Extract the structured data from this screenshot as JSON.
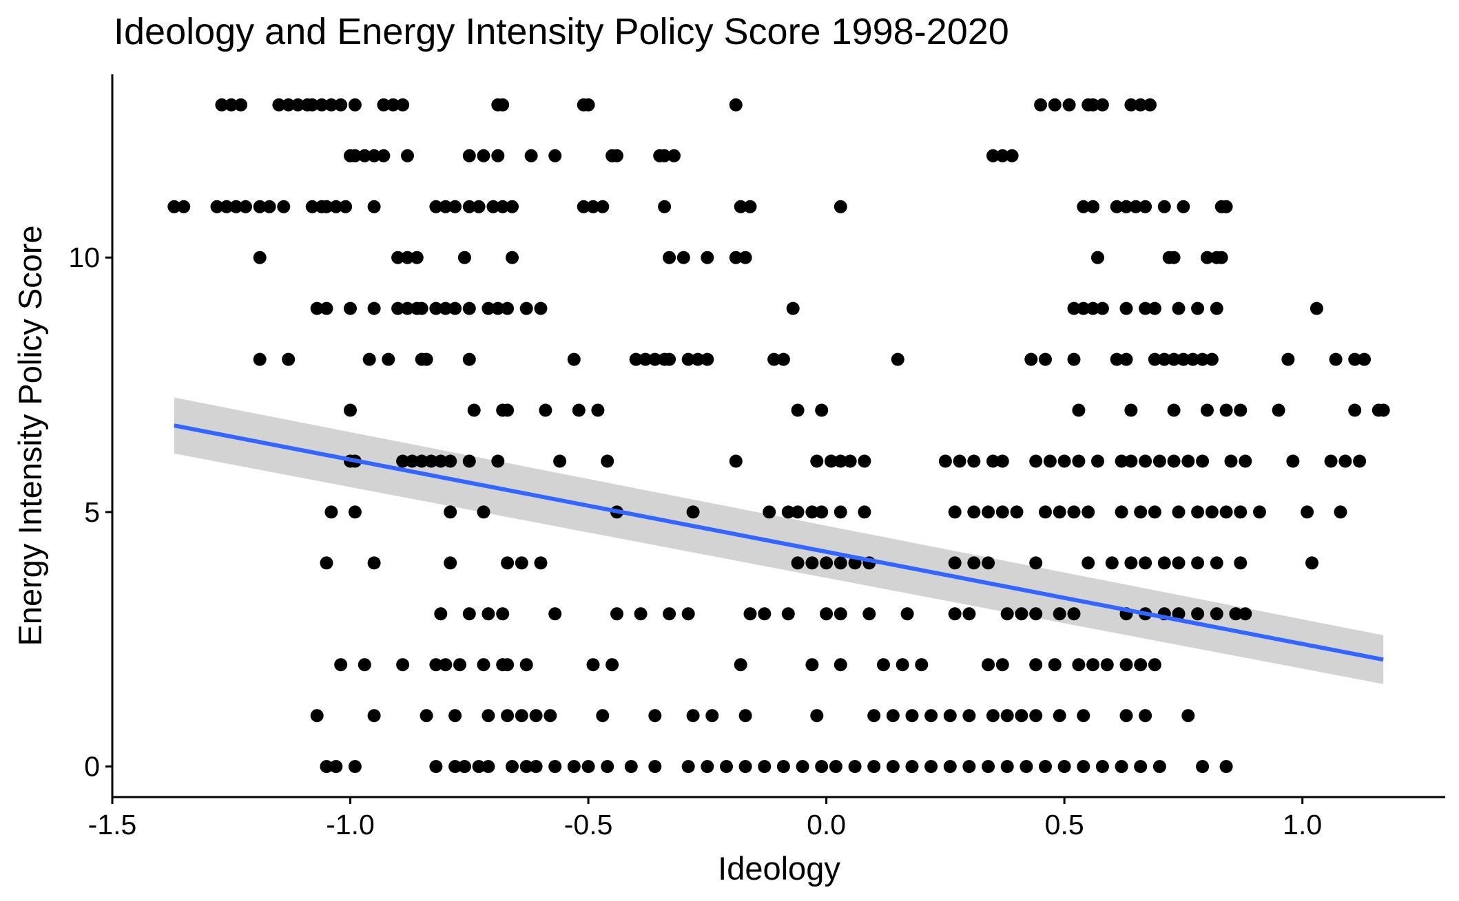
{
  "chart_data": {
    "type": "scatter",
    "title": "Ideology and Energy Intensity Policy Score 1998-2020",
    "xlabel": "Ideology",
    "ylabel": "Energy Intensity Policy Score",
    "xlim": [
      -1.5,
      1.3
    ],
    "ylim": [
      -0.6,
      13.6
    ],
    "grid": false,
    "x_ticks": [
      -1.5,
      -1.0,
      -0.5,
      0.0,
      0.5,
      1.0
    ],
    "x_tick_labels": [
      "-1.5",
      "-1.0",
      "-0.5",
      "0.0",
      "0.5",
      "1.0"
    ],
    "y_ticks": [
      0,
      5,
      10
    ],
    "y_tick_labels": [
      "0",
      "5",
      "10"
    ],
    "point_color": "#000000",
    "points_by_score": [
      {
        "y": 13,
        "x": [
          -1.27,
          -1.25,
          -1.23,
          -1.15,
          -1.13,
          -1.11,
          -1.09,
          -1.08,
          -1.06,
          -1.04,
          -1.02,
          -0.99,
          -0.93,
          -0.91,
          -0.89,
          -0.69,
          -0.68,
          -0.51,
          -0.5,
          -0.19,
          0.45,
          0.48,
          0.51,
          0.55,
          0.56,
          0.58,
          0.64,
          0.66,
          0.68
        ]
      },
      {
        "y": 12,
        "x": [
          -1.0,
          -0.99,
          -0.97,
          -0.95,
          -0.93,
          -0.88,
          -0.75,
          -0.72,
          -0.69,
          -0.62,
          -0.57,
          -0.45,
          -0.44,
          -0.35,
          -0.34,
          -0.32,
          0.35,
          0.37,
          0.39
        ]
      },
      {
        "y": 11,
        "x": [
          -1.37,
          -1.35,
          -1.28,
          -1.26,
          -1.24,
          -1.22,
          -1.19,
          -1.17,
          -1.14,
          -1.08,
          -1.06,
          -1.05,
          -1.03,
          -1.01,
          -0.95,
          -0.82,
          -0.8,
          -0.78,
          -0.75,
          -0.73,
          -0.7,
          -0.68,
          -0.66,
          -0.51,
          -0.49,
          -0.47,
          -0.34,
          -0.18,
          -0.16,
          0.03,
          0.54,
          0.56,
          0.61,
          0.63,
          0.65,
          0.67,
          0.71,
          0.75,
          0.83,
          0.84
        ]
      },
      {
        "y": 10,
        "x": [
          -1.19,
          -0.9,
          -0.88,
          -0.86,
          -0.76,
          -0.66,
          -0.33,
          -0.3,
          -0.25,
          -0.19,
          -0.17,
          0.57,
          0.72,
          0.73,
          0.8,
          0.82,
          0.83
        ]
      },
      {
        "y": 9,
        "x": [
          -1.07,
          -1.05,
          -1.0,
          -0.95,
          -0.9,
          -0.88,
          -0.86,
          -0.85,
          -0.82,
          -0.8,
          -0.78,
          -0.75,
          -0.71,
          -0.69,
          -0.67,
          -0.63,
          -0.6,
          -0.07,
          0.52,
          0.54,
          0.56,
          0.58,
          0.63,
          0.67,
          0.69,
          0.74,
          0.78,
          0.82,
          1.03
        ]
      },
      {
        "y": 8,
        "x": [
          -1.19,
          -1.13,
          -0.96,
          -0.92,
          -0.85,
          -0.84,
          -0.75,
          -0.53,
          -0.4,
          -0.38,
          -0.36,
          -0.34,
          -0.33,
          -0.29,
          -0.27,
          -0.25,
          -0.11,
          -0.09,
          0.15,
          0.43,
          0.46,
          0.52,
          0.61,
          0.63,
          0.69,
          0.71,
          0.73,
          0.75,
          0.77,
          0.79,
          0.81,
          0.97,
          1.07,
          1.11,
          1.13
        ]
      },
      {
        "y": 7,
        "x": [
          -1.0,
          -0.74,
          -0.68,
          -0.67,
          -0.59,
          -0.52,
          -0.48,
          -0.06,
          -0.01,
          0.53,
          0.64,
          0.73,
          0.8,
          0.84,
          0.87,
          0.95,
          1.11,
          1.16,
          1.17
        ]
      },
      {
        "y": 6,
        "x": [
          -1.0,
          -0.99,
          -0.89,
          -0.87,
          -0.85,
          -0.83,
          -0.81,
          -0.79,
          -0.75,
          -0.69,
          -0.56,
          -0.46,
          -0.19,
          -0.02,
          0.01,
          0.03,
          0.05,
          0.08,
          0.25,
          0.28,
          0.31,
          0.35,
          0.37,
          0.44,
          0.47,
          0.5,
          0.53,
          0.57,
          0.62,
          0.64,
          0.67,
          0.7,
          0.73,
          0.76,
          0.79,
          0.85,
          0.88,
          0.98,
          1.06,
          1.09,
          1.12
        ]
      },
      {
        "y": 5,
        "x": [
          -1.04,
          -0.99,
          -0.79,
          -0.72,
          -0.44,
          -0.28,
          -0.12,
          -0.08,
          -0.06,
          -0.03,
          -0.01,
          0.03,
          0.08,
          0.27,
          0.31,
          0.34,
          0.37,
          0.4,
          0.46,
          0.49,
          0.52,
          0.55,
          0.62,
          0.66,
          0.69,
          0.74,
          0.78,
          0.81,
          0.84,
          0.87,
          0.91,
          1.01,
          1.08
        ]
      },
      {
        "y": 4,
        "x": [
          -1.05,
          -0.95,
          -0.79,
          -0.67,
          -0.64,
          -0.6,
          -0.06,
          -0.03,
          0.0,
          0.03,
          0.06,
          0.09,
          0.27,
          0.31,
          0.34,
          0.44,
          0.55,
          0.6,
          0.64,
          0.67,
          0.71,
          0.74,
          0.78,
          0.82,
          0.87,
          1.02
        ]
      },
      {
        "y": 3,
        "x": [
          -0.81,
          -0.75,
          -0.71,
          -0.68,
          -0.57,
          -0.44,
          -0.39,
          -0.33,
          -0.29,
          -0.16,
          -0.13,
          -0.08,
          0.0,
          0.03,
          0.09,
          0.17,
          0.27,
          0.3,
          0.38,
          0.41,
          0.44,
          0.49,
          0.52,
          0.63,
          0.67,
          0.71,
          0.74,
          0.78,
          0.82,
          0.86,
          0.88
        ]
      },
      {
        "y": 2,
        "x": [
          -1.02,
          -0.97,
          -0.89,
          -0.82,
          -0.8,
          -0.77,
          -0.72,
          -0.68,
          -0.67,
          -0.63,
          -0.49,
          -0.45,
          -0.18,
          -0.03,
          0.03,
          0.12,
          0.16,
          0.2,
          0.34,
          0.37,
          0.44,
          0.48,
          0.53,
          0.56,
          0.59,
          0.63,
          0.66,
          0.69
        ]
      },
      {
        "y": 1,
        "x": [
          -1.07,
          -0.95,
          -0.84,
          -0.78,
          -0.71,
          -0.67,
          -0.64,
          -0.61,
          -0.58,
          -0.47,
          -0.36,
          -0.28,
          -0.24,
          -0.17,
          -0.02,
          0.1,
          0.14,
          0.18,
          0.22,
          0.26,
          0.3,
          0.35,
          0.38,
          0.41,
          0.44,
          0.49,
          0.54,
          0.63,
          0.67,
          0.76
        ]
      },
      {
        "y": 0,
        "x": [
          -1.05,
          -1.03,
          -0.99,
          -0.82,
          -0.78,
          -0.76,
          -0.73,
          -0.71,
          -0.66,
          -0.63,
          -0.61,
          -0.57,
          -0.53,
          -0.5,
          -0.46,
          -0.41,
          -0.36,
          -0.29,
          -0.25,
          -0.21,
          -0.17,
          -0.13,
          -0.09,
          -0.05,
          -0.01,
          0.02,
          0.06,
          0.1,
          0.14,
          0.18,
          0.22,
          0.26,
          0.3,
          0.34,
          0.38,
          0.42,
          0.46,
          0.5,
          0.54,
          0.58,
          0.62,
          0.66,
          0.7,
          0.79,
          0.84
        ]
      }
    ],
    "trend_line": {
      "method": "linear",
      "color": "#3366FF",
      "band_color": "#D3D3D3",
      "x": [
        -1.37,
        1.17
      ],
      "y": [
        6.7,
        2.1
      ],
      "ci_lower": [
        6.15,
        1.62
      ],
      "ci_upper": [
        7.25,
        2.58
      ]
    }
  }
}
